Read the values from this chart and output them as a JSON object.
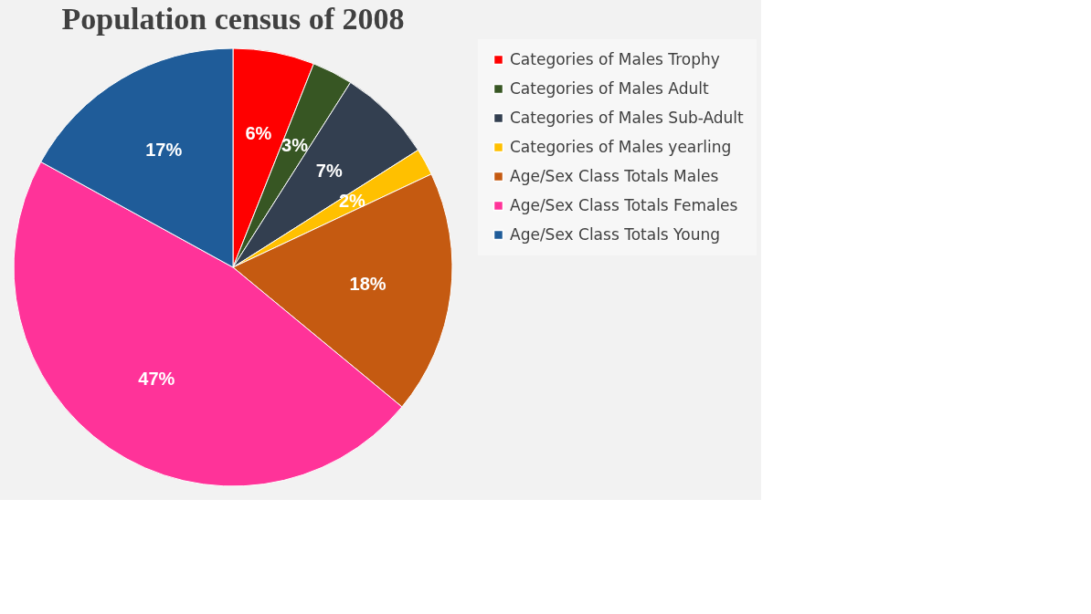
{
  "chart_data": {
    "type": "pie",
    "title": "Population census of 2008",
    "categories": [
      "Categories of Males Trophy",
      "Categories of Males Adult",
      "Categories of Males Sub-Adult",
      "Categories of Males yearling",
      "Age/Sex Class Totals Males",
      "Age/Sex Class Totals Females",
      "Age/Sex Class Totals Young"
    ],
    "values": [
      6,
      3,
      7,
      2,
      18,
      47,
      17
    ],
    "colors": [
      "#ff0000",
      "#375623",
      "#333f50",
      "#ffc000",
      "#c55a11",
      "#ff3399",
      "#1f5c99"
    ],
    "value_labels": [
      "6%",
      "3%",
      "7%",
      "2%",
      "18%",
      "47%",
      "17%"
    ],
    "legend": "right"
  }
}
